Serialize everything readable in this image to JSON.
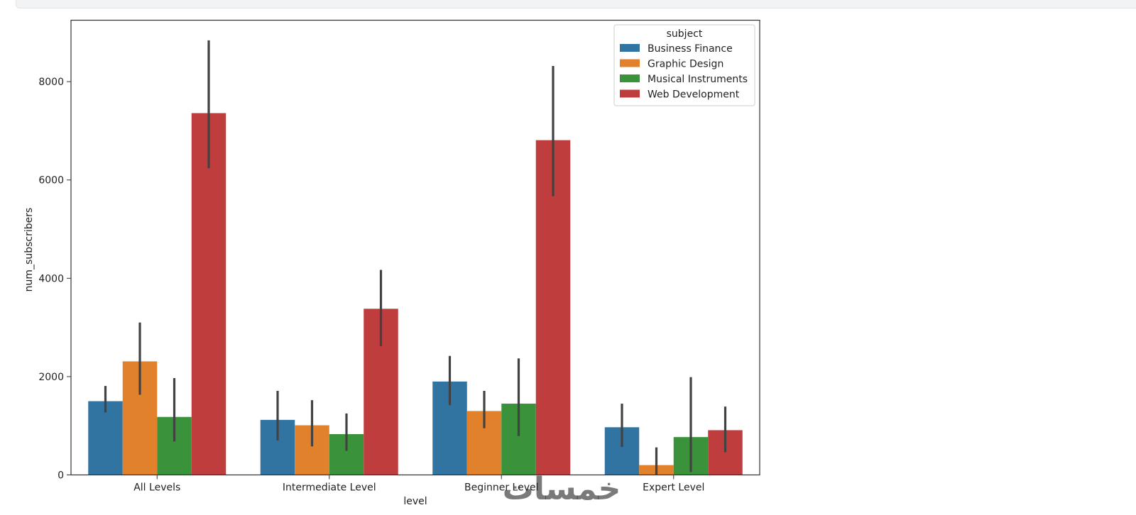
{
  "chart_data": {
    "type": "bar",
    "title": "",
    "xlabel": "level",
    "ylabel": "num_subscribers",
    "ylim": [
      0,
      9250
    ],
    "yticks": [
      0,
      2000,
      4000,
      6000,
      8000
    ],
    "ytick_labels": [
      "0",
      "2000",
      "4000",
      "6000",
      "8000"
    ],
    "categories": [
      "All Levels",
      "Intermediate Level",
      "Beginner Level",
      "Expert Level"
    ],
    "legend_title": "subject",
    "legend_position": "top-right",
    "grid": false,
    "series": [
      {
        "name": "Business Finance",
        "color": "#3274a1",
        "values": [
          1500,
          1120,
          1900,
          970
        ],
        "error_low": [
          1270,
          700,
          1420,
          570
        ],
        "error_high": [
          1810,
          1710,
          2420,
          1450
        ]
      },
      {
        "name": "Graphic Design",
        "color": "#e1812c",
        "values": [
          2310,
          1010,
          1300,
          200
        ],
        "error_low": [
          1630,
          580,
          950,
          0
        ],
        "error_high": [
          3100,
          1520,
          1710,
          560
        ]
      },
      {
        "name": "Musical Instruments",
        "color": "#3a923a",
        "values": [
          1180,
          830,
          1450,
          770
        ],
        "error_low": [
          680,
          490,
          790,
          60
        ],
        "error_high": [
          1970,
          1250,
          2370,
          1990
        ]
      },
      {
        "name": "Web Development",
        "color": "#c03d3e",
        "values": [
          7360,
          3380,
          6810,
          910
        ],
        "error_low": [
          6240,
          2620,
          5670,
          460
        ],
        "error_high": [
          8840,
          4170,
          8320,
          1390
        ]
      }
    ]
  },
  "watermark": {
    "text": "خمسات"
  }
}
